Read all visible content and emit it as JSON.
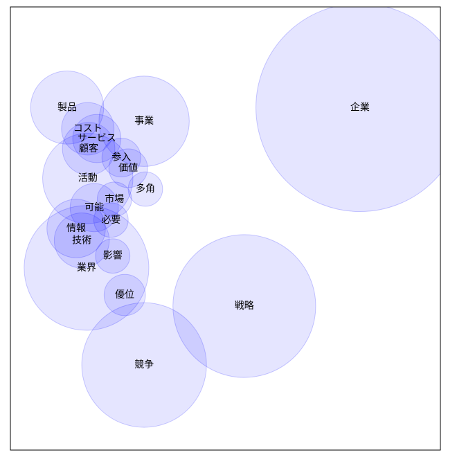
{
  "chart_data": {
    "type": "bubble",
    "color": "#0000ff",
    "xlim": [
      0,
      100
    ],
    "ylim": [
      0,
      100
    ],
    "labels": [
      "企業",
      "製品",
      "事業",
      "コスト",
      "サービス",
      "顧客",
      "参入",
      "価値",
      "活動",
      "多角",
      "市場",
      "可能",
      "必要",
      "情報",
      "技術",
      "影響",
      "業界",
      "優位",
      "戦略",
      "競争"
    ],
    "x": [
      81.3,
      13.2,
      31.1,
      18.0,
      20.1,
      18.2,
      25.8,
      27.4,
      18.0,
      31.4,
      24.2,
      19.5,
      23.4,
      15.3,
      16.6,
      23.8,
      17.7,
      26.6,
      54.4,
      31.1
    ],
    "y": [
      77.3,
      77.3,
      74.2,
      72.5,
      70.3,
      68.0,
      66.0,
      63.6,
      61.3,
      58.9,
      56.6,
      54.7,
      51.9,
      50.0,
      47.3,
      43.8,
      41.1,
      35.0,
      32.5,
      19.2
    ],
    "sizes": [
      24.2,
      8.5,
      10.5,
      6.1,
      5.6,
      6.1,
      4.5,
      4.5,
      10.5,
      4.0,
      4.0,
      5.6,
      4.0,
      6.8,
      6.4,
      4.0,
      14.5,
      4.8,
      16.6,
      14.5
    ]
  }
}
